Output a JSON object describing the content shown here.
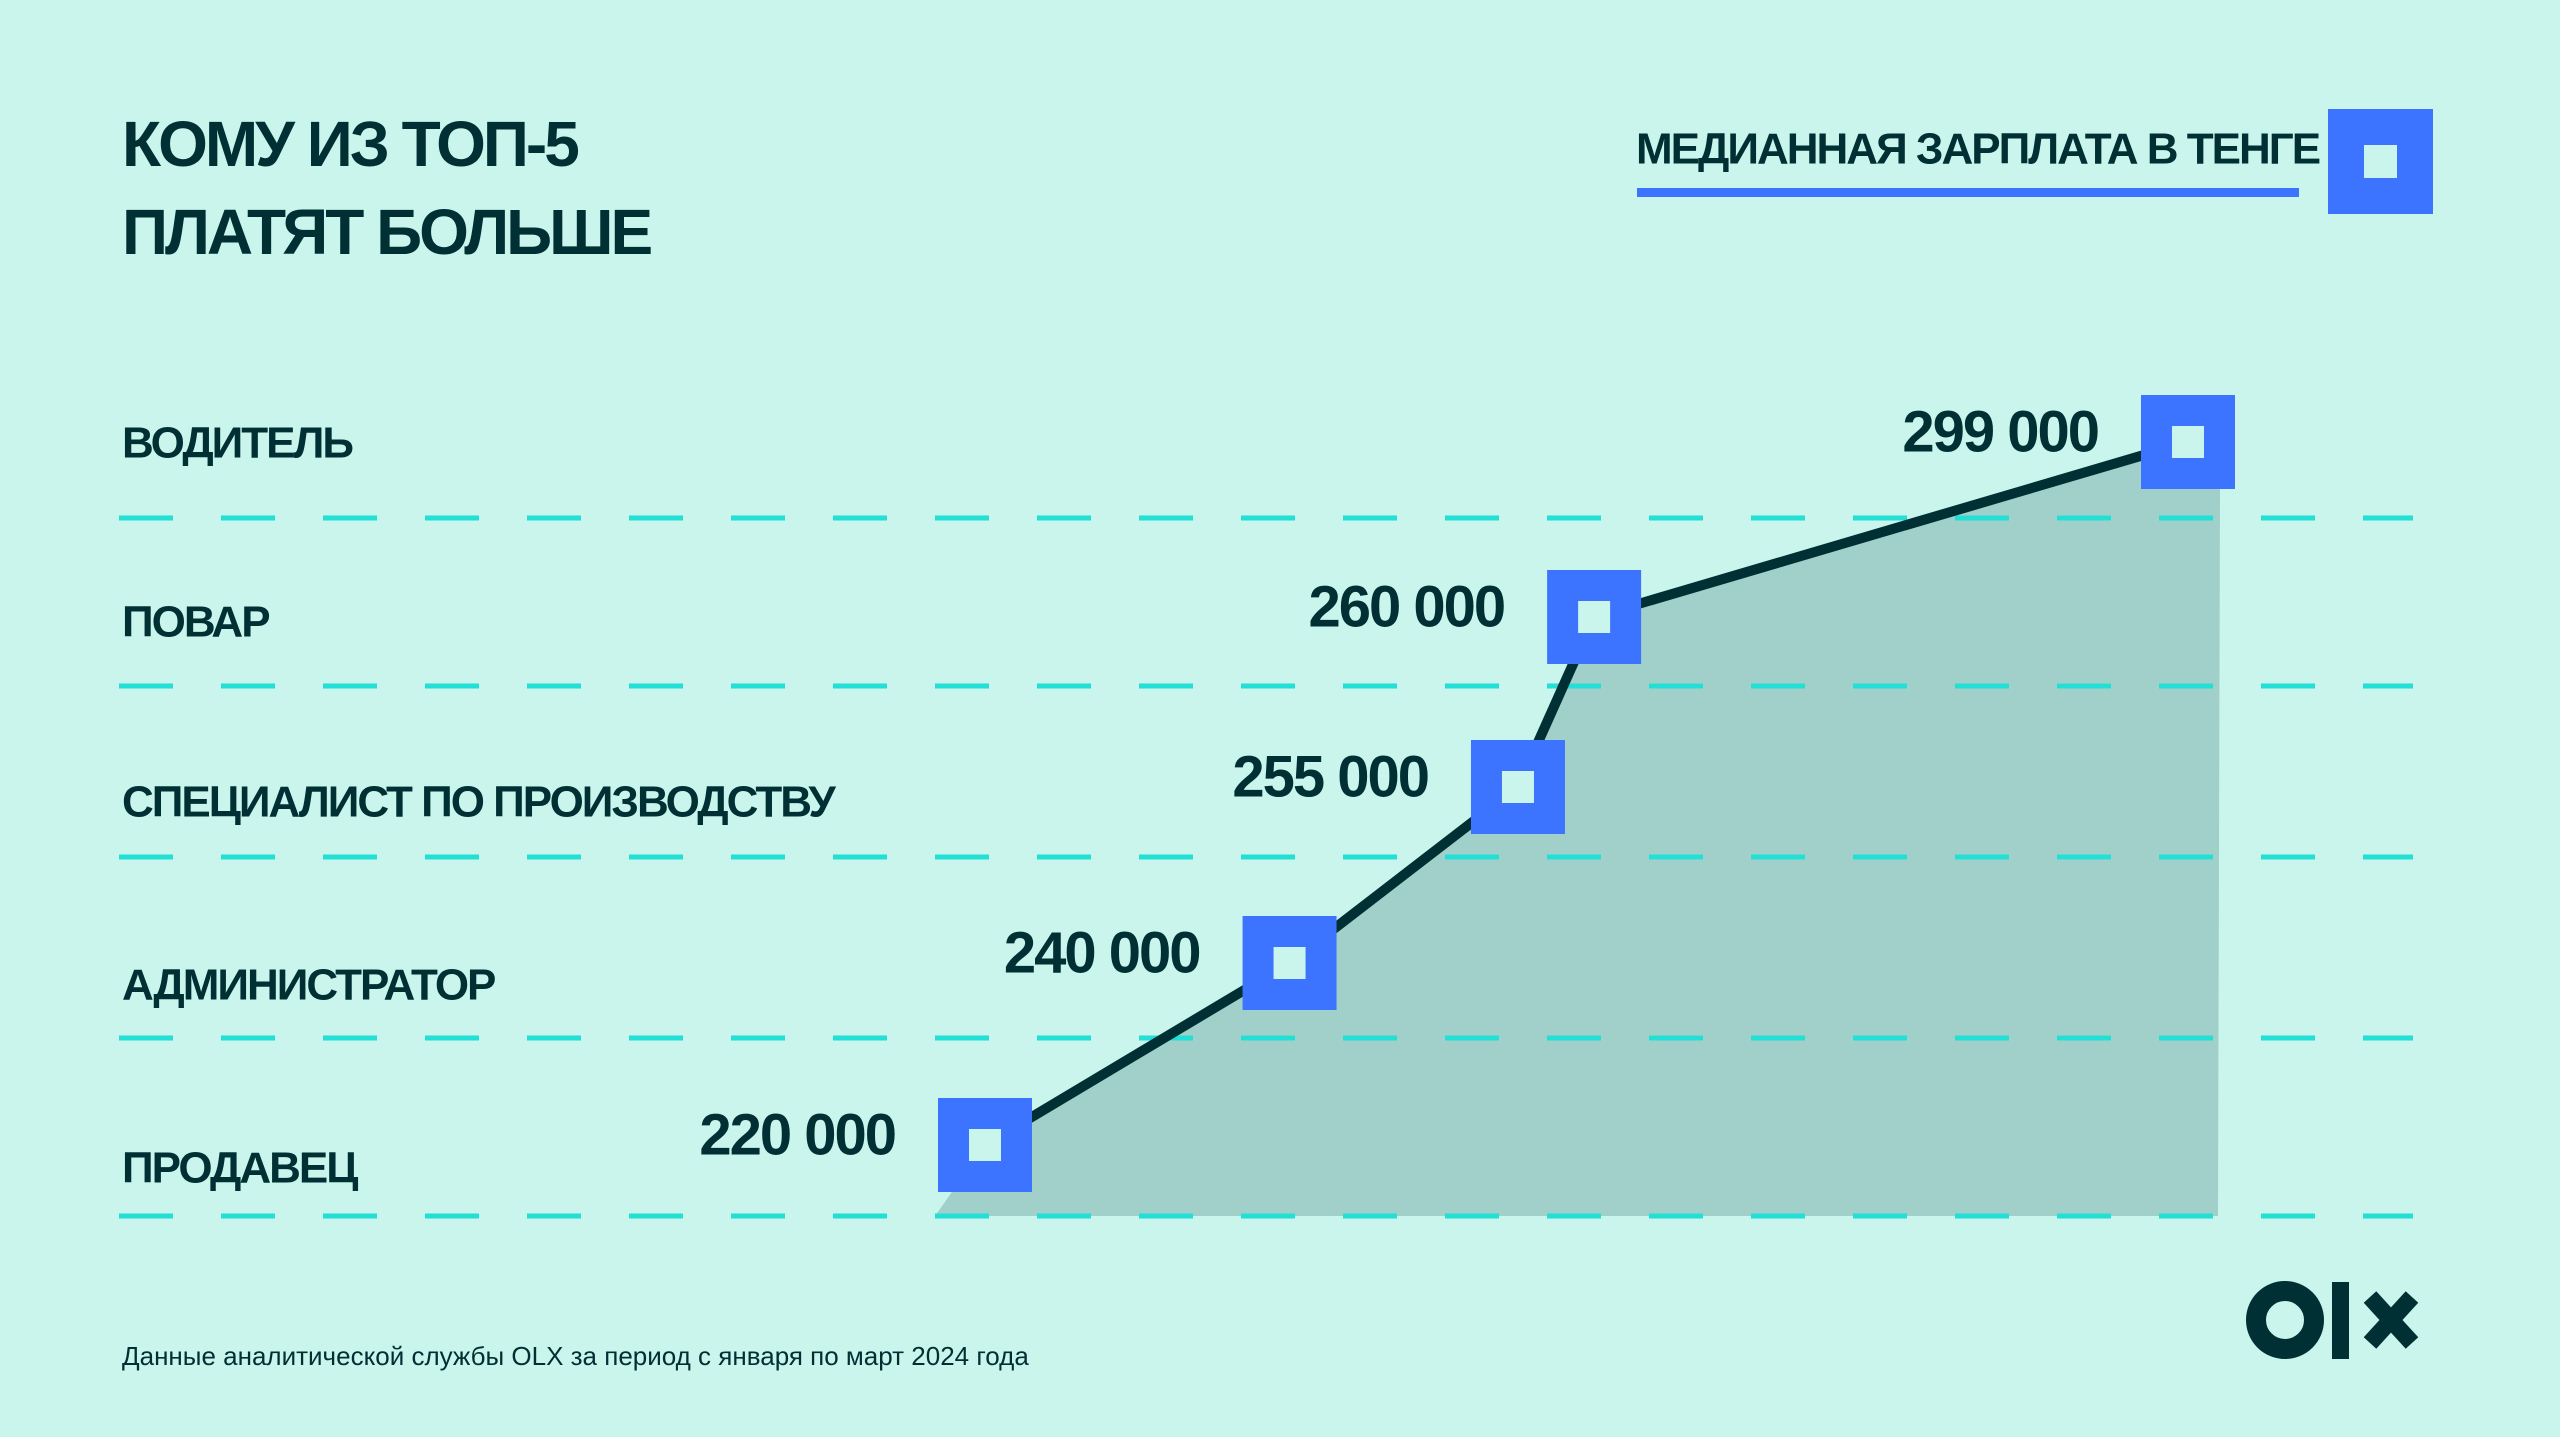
{
  "chart_data": {
    "type": "line",
    "title": "КОМУ ИЗ ТОП-5 ПЛАТЯТ БОЛЬШЕ",
    "categories": [
      "ВОДИТЕЛЬ",
      "ПОВАР",
      "СПЕЦИАЛИСТ ПО ПРОИЗВОДСТВУ",
      "АДМИНИСТРАТОР",
      "ПРОДАВЕЦ"
    ],
    "series": [
      {
        "name": "МЕДИАННАЯ ЗАРПЛАТА В ТЕНГЕ",
        "color": "#3d74ff",
        "values": [
          299000,
          260000,
          255000,
          240000,
          220000
        ],
        "value_labels": [
          "299 000",
          "260 000",
          "255 000",
          "240 000",
          "220 000"
        ]
      }
    ],
    "source": "Данные аналитической службы OLX за период с января по март 2024 года"
  }
}
